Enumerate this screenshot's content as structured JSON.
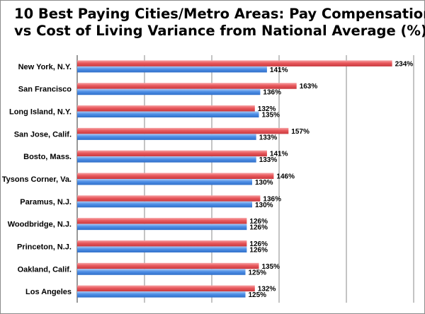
{
  "chart_data": {
    "type": "bar",
    "orientation": "horizontal",
    "title_lines": [
      "10 Best Paying Cities/Metro Areas: Pay Compensation",
      "vs Cost of Living  Variance from National Average (%)"
    ],
    "categories": [
      "New York, N.Y.",
      "San Francisco",
      "Long Island, N.Y.",
      "San Jose, Calif.",
      "Bosto, Mass.",
      "Tysons Corner, Va.",
      "Paramus, N.J.",
      "Woodbridge, N.J.",
      "Princeton, N.J.",
      "Oakland, Calif.",
      "Los Angeles"
    ],
    "series": [
      {
        "color": "#e8585c",
        "values": [
          234,
          163,
          132,
          157,
          141,
          146,
          136,
          126,
          126,
          135,
          132
        ],
        "labels": [
          "234%",
          "163%",
          "132%",
          "157%",
          "141%",
          "146%",
          "136%",
          "126%",
          "126%",
          "135%",
          "132%"
        ]
      },
      {
        "color": "#4f8fe6",
        "values": [
          141,
          136,
          135,
          133,
          133,
          130,
          130,
          126,
          126,
          125,
          125
        ],
        "labels": [
          "141%",
          "136%",
          "135%",
          "133%",
          "133%",
          "130%",
          "130%",
          "126%",
          "126%",
          "125%",
          "125%"
        ]
      }
    ],
    "xlim": [
      0,
      250
    ],
    "grid_step": 50,
    "grid": true,
    "legend": "none"
  }
}
